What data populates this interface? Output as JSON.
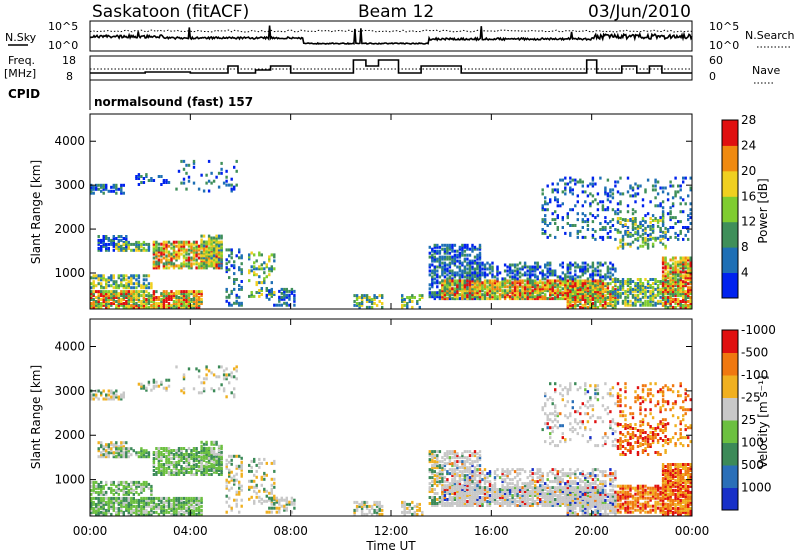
{
  "header": {
    "station": "Saskatoon (fitACF)",
    "beam": "Beam 12",
    "date": "03/Jun/2010"
  },
  "status_panels": {
    "nsky_label": "N.Sky",
    "freq_label": "Freq.",
    "freq_unit": "[MHz]",
    "cpid_label": "CPID",
    "nsearch_label": "N.Search",
    "nave_label": "Nave",
    "nsky_ticks": [
      "10^5",
      "10^0"
    ],
    "nsearch_ticks": [
      "10^5",
      "10^0"
    ],
    "freq_ticks": [
      "18",
      "8"
    ],
    "nave_ticks": [
      "60",
      "0"
    ],
    "cpid_text": "normalsound (fast) 157"
  },
  "chart_data": [
    {
      "type": "heatmap",
      "title": "Power",
      "xlabel": "",
      "ylabel": "Slant Range [km]",
      "yticks": [
        "1000",
        "2000",
        "3000",
        "4000"
      ],
      "ylim": [
        180,
        4620
      ],
      "xlim": [
        0,
        24
      ],
      "colorbar": {
        "label": "Power [dB]",
        "ticks": [
          "4",
          "8",
          "12",
          "16",
          "20",
          "24",
          "28"
        ],
        "colors": [
          "#0022ee",
          "#1e6fb5",
          "#3f8f5a",
          "#7fcc30",
          "#f0d020",
          "#f08a10",
          "#e01010"
        ]
      }
    },
    {
      "type": "heatmap",
      "title": "Velocity",
      "xlabel": "Time UT",
      "ylabel": "Slant Range [km]",
      "yticks": [
        "1000",
        "2000",
        "3000",
        "4000"
      ],
      "ylim": [
        180,
        4620
      ],
      "xlim": [
        0,
        24
      ],
      "xticks": [
        "00:00",
        "04:00",
        "08:00",
        "12:00",
        "16:00",
        "20:00",
        "00:00"
      ],
      "colorbar": {
        "label": "Velocity [m s⁻¹]",
        "ticks": [
          "1000",
          "500",
          "100",
          "25",
          "-25",
          "-100",
          "-500",
          "-1000"
        ],
        "colors": [
          "#1830c8",
          "#2a6fb8",
          "#3c8a58",
          "#6cc040",
          "#c8c8c8",
          "#f0b020",
          "#f07810",
          "#e01010"
        ]
      }
    }
  ]
}
